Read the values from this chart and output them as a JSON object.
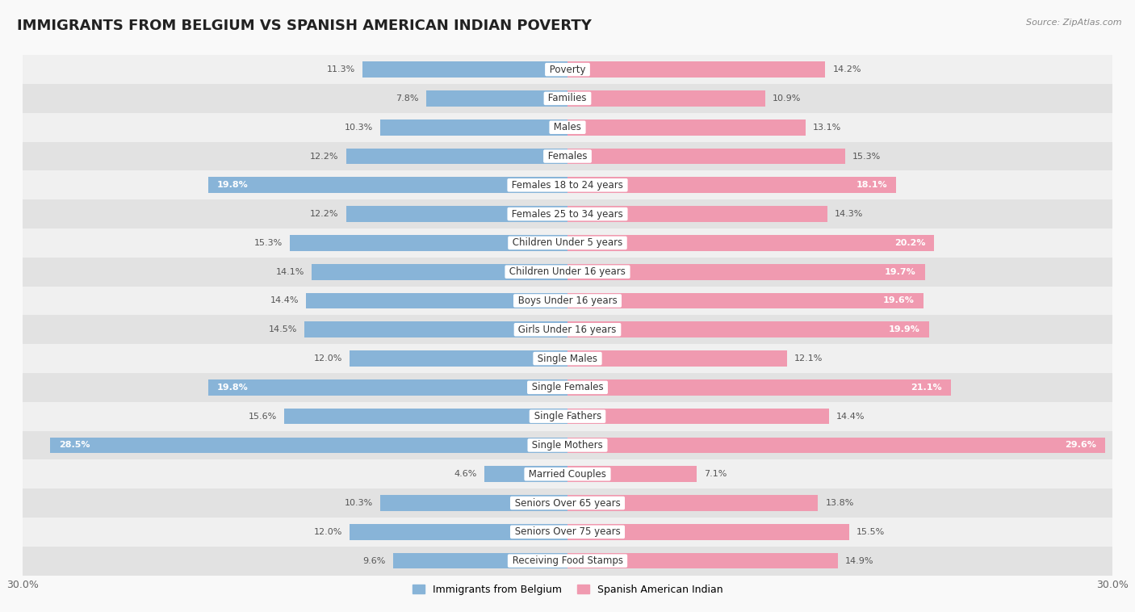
{
  "title": "IMMIGRANTS FROM BELGIUM VS SPANISH AMERICAN INDIAN POVERTY",
  "source": "Source: ZipAtlas.com",
  "categories": [
    "Poverty",
    "Families",
    "Males",
    "Females",
    "Females 18 to 24 years",
    "Females 25 to 34 years",
    "Children Under 5 years",
    "Children Under 16 years",
    "Boys Under 16 years",
    "Girls Under 16 years",
    "Single Males",
    "Single Females",
    "Single Fathers",
    "Single Mothers",
    "Married Couples",
    "Seniors Over 65 years",
    "Seniors Over 75 years",
    "Receiving Food Stamps"
  ],
  "left_values": [
    11.3,
    7.8,
    10.3,
    12.2,
    19.8,
    12.2,
    15.3,
    14.1,
    14.4,
    14.5,
    12.0,
    19.8,
    15.6,
    28.5,
    4.6,
    10.3,
    12.0,
    9.6
  ],
  "right_values": [
    14.2,
    10.9,
    13.1,
    15.3,
    18.1,
    14.3,
    20.2,
    19.7,
    19.6,
    19.9,
    12.1,
    21.1,
    14.4,
    29.6,
    7.1,
    13.8,
    15.5,
    14.9
  ],
  "left_color": "#88b4d8",
  "right_color": "#f09ab0",
  "left_label": "Immigrants from Belgium",
  "right_label": "Spanish American Indian",
  "axis_max": 30.0,
  "bg_light": "#f0f0f0",
  "bg_dark": "#e2e2e2",
  "title_fontsize": 13,
  "label_fontsize": 8.5,
  "value_fontsize": 8.0
}
